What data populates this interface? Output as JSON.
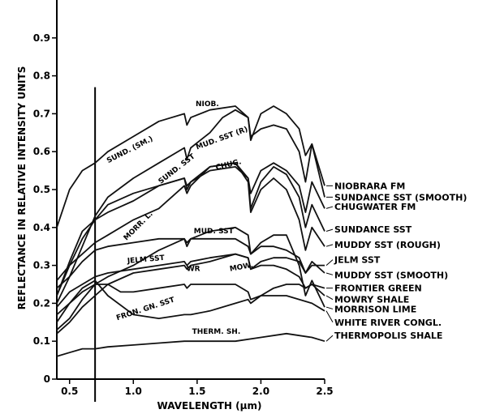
{
  "chart_data": {
    "type": "line",
    "xlabel": "WAVELENGTH (μm)",
    "ylabel": "REFLECTANCE IN RELATIVE INTENSITY UNITS",
    "xlim": [
      0.4,
      2.5
    ],
    "ylim": [
      0,
      1.0
    ],
    "xticks": [
      {
        "v": 0.5,
        "label": "0.5"
      },
      {
        "v": 1.0,
        "label": "1.0"
      },
      {
        "v": 1.5,
        "label": "1.5"
      },
      {
        "v": 2.0,
        "label": "2.0"
      },
      {
        "v": 2.5,
        "label": "2.5"
      }
    ],
    "yticks": [
      {
        "v": 0,
        "label": "0"
      },
      {
        "v": 0.1,
        "label": "0.1"
      },
      {
        "v": 0.2,
        "label": "0.2"
      },
      {
        "v": 0.3,
        "label": "0.3"
      },
      {
        "v": 0.4,
        "label": "0.4"
      },
      {
        "v": 0.5,
        "label": "0.5"
      },
      {
        "v": 0.6,
        "label": "0.6"
      },
      {
        "v": 0.7,
        "label": "0.7"
      },
      {
        "v": 0.8,
        "label": "0.8"
      },
      {
        "v": 0.9,
        "label": "0.9"
      }
    ],
    "vline_x": 0.7,
    "grid": false,
    "legend_position": "right",
    "series": [
      {
        "name": "NIOBRARA FM",
        "label_y": 0.51,
        "x": [
          0.4,
          0.5,
          0.6,
          0.7,
          0.8,
          1.0,
          1.2,
          1.4,
          1.42,
          1.45,
          1.6,
          1.8,
          1.9,
          1.92,
          2.0,
          2.1,
          2.2,
          2.3,
          2.35,
          2.4,
          2.5
        ],
        "y": [
          0.4,
          0.5,
          0.55,
          0.57,
          0.6,
          0.64,
          0.68,
          0.7,
          0.67,
          0.69,
          0.71,
          0.72,
          0.69,
          0.64,
          0.66,
          0.67,
          0.66,
          0.6,
          0.52,
          0.62,
          0.51
        ]
      },
      {
        "name": "SUNDANCE SST (SMOOTH)",
        "label_y": 0.48,
        "x": [
          0.4,
          0.5,
          0.6,
          0.7,
          0.8,
          1.0,
          1.2,
          1.4,
          1.42,
          1.45,
          1.6,
          1.7,
          1.8,
          1.9,
          1.92,
          2.0,
          2.1,
          2.2,
          2.3,
          2.35,
          2.4,
          2.5
        ],
        "y": [
          0.24,
          0.27,
          0.35,
          0.43,
          0.48,
          0.53,
          0.57,
          0.61,
          0.58,
          0.61,
          0.65,
          0.69,
          0.71,
          0.69,
          0.63,
          0.7,
          0.72,
          0.7,
          0.66,
          0.59,
          0.62,
          0.48
        ]
      },
      {
        "name": "CHUGWATER FM",
        "label_y": 0.455,
        "x": [
          0.4,
          0.5,
          0.6,
          0.7,
          0.8,
          1.0,
          1.2,
          1.4,
          1.42,
          1.45,
          1.6,
          1.8,
          1.9,
          1.92,
          2.0,
          2.1,
          2.2,
          2.3,
          2.35,
          2.4,
          2.5
        ],
        "y": [
          0.22,
          0.3,
          0.37,
          0.42,
          0.46,
          0.49,
          0.51,
          0.53,
          0.51,
          0.52,
          0.55,
          0.56,
          0.53,
          0.49,
          0.55,
          0.57,
          0.55,
          0.51,
          0.44,
          0.52,
          0.45
        ]
      },
      {
        "name": "SUNDANCE SST",
        "label_y": 0.395,
        "x": [
          0.4,
          0.5,
          0.6,
          0.7,
          0.8,
          1.0,
          1.2,
          1.4,
          1.42,
          1.45,
          1.6,
          1.8,
          1.9,
          1.92,
          2.0,
          2.1,
          2.2,
          2.3,
          2.35,
          2.4,
          2.5
        ],
        "y": [
          0.22,
          0.31,
          0.39,
          0.42,
          0.44,
          0.47,
          0.51,
          0.53,
          0.5,
          0.52,
          0.56,
          0.57,
          0.53,
          0.45,
          0.52,
          0.56,
          0.54,
          0.48,
          0.4,
          0.46,
          0.39
        ]
      },
      {
        "name": "MUDDY SST (ROUGH)",
        "label_y": 0.355,
        "x": [
          0.4,
          0.5,
          0.6,
          0.7,
          0.8,
          1.0,
          1.2,
          1.4,
          1.42,
          1.45,
          1.6,
          1.8,
          1.9,
          1.92,
          2.0,
          2.1,
          2.2,
          2.3,
          2.35,
          2.4,
          2.5
        ],
        "y": [
          0.26,
          0.3,
          0.33,
          0.36,
          0.38,
          0.42,
          0.45,
          0.51,
          0.49,
          0.51,
          0.56,
          0.57,
          0.52,
          0.44,
          0.5,
          0.53,
          0.5,
          0.42,
          0.34,
          0.4,
          0.35
        ]
      },
      {
        "name": "JELM SST",
        "label_y": 0.315,
        "x": [
          0.4,
          0.5,
          0.6,
          0.7,
          0.8,
          1.0,
          1.2,
          1.4,
          1.42,
          1.45,
          1.6,
          1.8,
          1.9,
          1.92,
          2.0,
          2.1,
          2.2,
          2.3,
          2.35,
          2.4,
          2.5
        ],
        "y": [
          0.19,
          0.23,
          0.25,
          0.27,
          0.28,
          0.29,
          0.3,
          0.31,
          0.3,
          0.31,
          0.32,
          0.33,
          0.32,
          0.29,
          0.31,
          0.32,
          0.32,
          0.31,
          0.28,
          0.3,
          0.3
        ]
      },
      {
        "name": "MUDDY SST (SMOOTH)",
        "label_y": 0.275,
        "x": [
          0.4,
          0.5,
          0.6,
          0.7,
          0.8,
          1.0,
          1.2,
          1.4,
          1.42,
          1.45,
          1.6,
          1.8,
          1.9,
          1.92,
          2.0,
          2.1,
          2.2,
          2.3,
          2.35,
          2.4,
          2.5
        ],
        "y": [
          0.2,
          0.27,
          0.31,
          0.34,
          0.35,
          0.36,
          0.37,
          0.37,
          0.36,
          0.37,
          0.37,
          0.37,
          0.35,
          0.33,
          0.35,
          0.35,
          0.34,
          0.32,
          0.28,
          0.31,
          0.28
        ]
      },
      {
        "name": "FRONTIER GREEN",
        "label_y": 0.24,
        "x": [
          0.4,
          0.5,
          0.6,
          0.7,
          0.8,
          1.0,
          1.2,
          1.4,
          1.42,
          1.45,
          1.6,
          1.8,
          1.9,
          1.92,
          2.0,
          2.1,
          2.2,
          2.3,
          2.35,
          2.4,
          2.5
        ],
        "y": [
          0.17,
          0.2,
          0.24,
          0.26,
          0.22,
          0.17,
          0.16,
          0.17,
          0.17,
          0.17,
          0.18,
          0.2,
          0.21,
          0.2,
          0.22,
          0.24,
          0.25,
          0.25,
          0.24,
          0.25,
          0.24
        ]
      },
      {
        "name": "MOWRY SHALE",
        "label_y": 0.21,
        "x": [
          0.4,
          0.5,
          0.6,
          0.7,
          0.8,
          1.0,
          1.2,
          1.4,
          1.42,
          1.45,
          1.6,
          1.8,
          1.9,
          1.92,
          2.0,
          2.1,
          2.2,
          2.3,
          2.35,
          2.4,
          2.5
        ],
        "y": [
          0.12,
          0.15,
          0.19,
          0.22,
          0.25,
          0.28,
          0.29,
          0.3,
          0.29,
          0.3,
          0.31,
          0.33,
          0.32,
          0.29,
          0.3,
          0.3,
          0.29,
          0.27,
          0.24,
          0.25,
          0.22
        ]
      },
      {
        "name": "MORRISON LIME",
        "label_y": 0.185,
        "x": [
          0.4,
          0.5,
          0.6,
          0.7,
          0.8,
          1.0,
          1.2,
          1.4,
          1.42,
          1.45,
          1.6,
          1.8,
          1.9,
          1.92,
          2.0,
          2.1,
          2.2,
          2.3,
          2.35,
          2.4,
          2.5
        ],
        "y": [
          0.15,
          0.2,
          0.23,
          0.25,
          0.27,
          0.3,
          0.34,
          0.37,
          0.35,
          0.37,
          0.39,
          0.4,
          0.38,
          0.33,
          0.36,
          0.38,
          0.38,
          0.3,
          0.22,
          0.26,
          0.19
        ]
      },
      {
        "name": "WHITE RIVER CONGL.",
        "label_y": 0.15,
        "x": [
          0.4,
          0.5,
          0.6,
          0.7,
          0.8,
          0.9,
          1.0,
          1.2,
          1.4,
          1.42,
          1.45,
          1.6,
          1.8,
          1.9,
          1.92,
          2.0,
          2.2,
          2.4,
          2.5
        ],
        "y": [
          0.13,
          0.16,
          0.21,
          0.25,
          0.25,
          0.23,
          0.23,
          0.24,
          0.25,
          0.24,
          0.25,
          0.25,
          0.25,
          0.23,
          0.21,
          0.22,
          0.22,
          0.2,
          0.18
        ]
      },
      {
        "name": "THERMOPOLIS SHALE",
        "label_y": 0.115,
        "x": [
          0.4,
          0.5,
          0.6,
          0.7,
          0.8,
          1.0,
          1.2,
          1.4,
          1.6,
          1.8,
          2.0,
          2.2,
          2.4,
          2.5
        ],
        "y": [
          0.06,
          0.07,
          0.08,
          0.08,
          0.085,
          0.09,
          0.095,
          0.1,
          0.1,
          0.1,
          0.11,
          0.12,
          0.11,
          0.1
        ]
      }
    ],
    "annotations": [
      {
        "text": "NIOB.",
        "x": 1.58,
        "y": 0.72,
        "rot": 0
      },
      {
        "text": "SUND. (SM.)",
        "x": 0.98,
        "y": 0.6,
        "rot": -27
      },
      {
        "text": "MUD. SST (R)",
        "x": 1.7,
        "y": 0.63,
        "rot": -20
      },
      {
        "text": "CHUG.",
        "x": 1.75,
        "y": 0.56,
        "rot": -14
      },
      {
        "text": "SUND. SST",
        "x": 1.35,
        "y": 0.55,
        "rot": -38
      },
      {
        "text": "MORR. L.",
        "x": 1.05,
        "y": 0.4,
        "rot": -45
      },
      {
        "text": "MUD. SST",
        "x": 1.63,
        "y": 0.385,
        "rot": 0
      },
      {
        "text": "JELM SST",
        "x": 1.1,
        "y": 0.31,
        "rot": -5
      },
      {
        "text": "MOW.",
        "x": 1.85,
        "y": 0.29,
        "rot": -10
      },
      {
        "text": "WR",
        "x": 1.47,
        "y": 0.285,
        "rot": 0
      },
      {
        "text": "FRON. GN. SST",
        "x": 1.1,
        "y": 0.18,
        "rot": -18
      },
      {
        "text": "THERM. SH.",
        "x": 1.65,
        "y": 0.12,
        "rot": 0
      }
    ]
  }
}
